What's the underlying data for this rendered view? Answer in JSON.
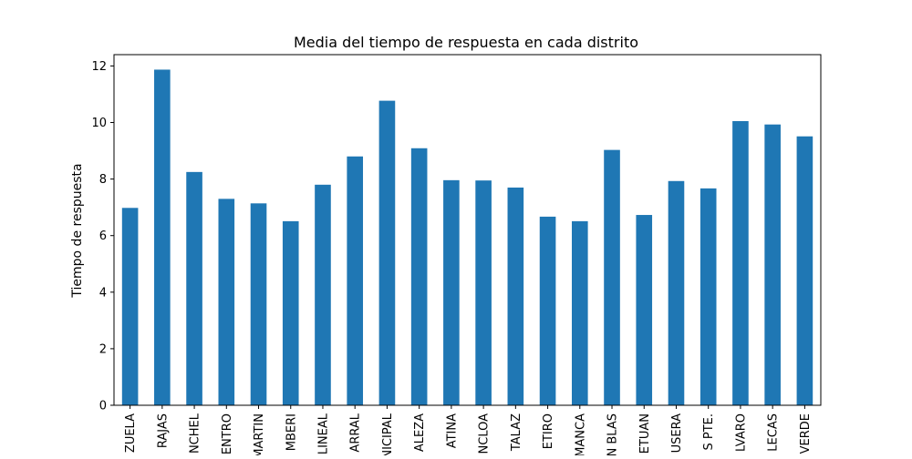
{
  "chart_data": {
    "type": "bar",
    "title": "Media del tiempo de respuesta en cada distrito",
    "xlabel": "",
    "ylabel": "Tiempo de respuesta",
    "ylim": [
      0,
      12.4
    ],
    "yticks": [
      0,
      2,
      4,
      6,
      8,
      10,
      12
    ],
    "grid": false,
    "legend": "none",
    "bar_color": "#1f77b4",
    "categories": [
      "ZUELA",
      "RAJAS",
      "NCHEL",
      "ENTRO",
      "MARTIN",
      "MBERI",
      "LINEAL",
      "ARRAL",
      "NICIPAL",
      "ALEZA",
      "ATINA",
      "NCLOA",
      "TALAZ",
      "ETIRO",
      "MANCA",
      "N BLAS",
      "ETUAN",
      "USERA",
      "S PTE.",
      "LVARO",
      "LECAS",
      "VERDE"
    ],
    "values": [
      6.98,
      11.87,
      8.25,
      7.3,
      7.14,
      6.51,
      7.8,
      8.8,
      10.77,
      9.09,
      7.96,
      7.95,
      7.7,
      6.67,
      6.51,
      9.03,
      6.73,
      7.93,
      7.67,
      10.05,
      9.93,
      9.51
    ]
  }
}
